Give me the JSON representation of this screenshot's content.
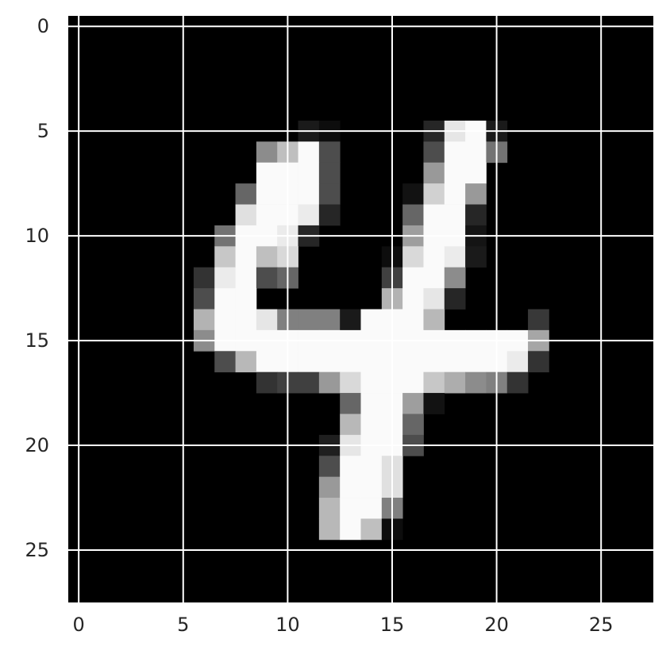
{
  "chart_data": {
    "type": "heatmap",
    "colormap": "gray",
    "value_range": [
      0,
      1
    ],
    "background_color": "#000000",
    "grid": true,
    "grid_color": "#ffffff",
    "x_ticks": [
      0,
      5,
      10,
      15,
      20,
      25
    ],
    "y_ticks": [
      0,
      5,
      10,
      15,
      20,
      25
    ],
    "x_tick_labels": [
      "0",
      "5",
      "10",
      "15",
      "20",
      "25"
    ],
    "y_tick_labels": [
      "0",
      "5",
      "10",
      "15",
      "20",
      "25"
    ],
    "xlim": [
      -0.5,
      27.5
    ],
    "ylim": [
      27.5,
      -0.5
    ],
    "pixels": [
      [
        5,
        11,
        0.1
      ],
      [
        5,
        12,
        0.05
      ],
      [
        5,
        17,
        0.15
      ],
      [
        5,
        18,
        0.9
      ],
      [
        5,
        19,
        0.98
      ],
      [
        5,
        20,
        0.1
      ],
      [
        6,
        9,
        0.55
      ],
      [
        6,
        10,
        0.75
      ],
      [
        6,
        11,
        0.98
      ],
      [
        6,
        12,
        0.3
      ],
      [
        6,
        17,
        0.3
      ],
      [
        6,
        18,
        0.98
      ],
      [
        6,
        19,
        0.98
      ],
      [
        6,
        20,
        0.45
      ],
      [
        7,
        9,
        0.98
      ],
      [
        7,
        10,
        0.98
      ],
      [
        7,
        11,
        0.98
      ],
      [
        7,
        12,
        0.3
      ],
      [
        7,
        17,
        0.6
      ],
      [
        7,
        18,
        0.98
      ],
      [
        7,
        19,
        0.98
      ],
      [
        8,
        8,
        0.4
      ],
      [
        8,
        9,
        0.98
      ],
      [
        8,
        10,
        0.98
      ],
      [
        8,
        11,
        0.98
      ],
      [
        8,
        12,
        0.3
      ],
      [
        8,
        16,
        0.07
      ],
      [
        8,
        17,
        0.82
      ],
      [
        8,
        18,
        0.98
      ],
      [
        8,
        19,
        0.6
      ],
      [
        9,
        8,
        0.88
      ],
      [
        9,
        9,
        0.98
      ],
      [
        9,
        10,
        0.98
      ],
      [
        9,
        11,
        0.92
      ],
      [
        9,
        12,
        0.15
      ],
      [
        9,
        16,
        0.4
      ],
      [
        9,
        17,
        0.98
      ],
      [
        9,
        18,
        0.98
      ],
      [
        9,
        19,
        0.15
      ],
      [
        10,
        7,
        0.45
      ],
      [
        10,
        8,
        0.98
      ],
      [
        10,
        9,
        0.98
      ],
      [
        10,
        10,
        0.92
      ],
      [
        10,
        11,
        0.15
      ],
      [
        10,
        16,
        0.62
      ],
      [
        10,
        17,
        0.98
      ],
      [
        10,
        18,
        0.98
      ],
      [
        10,
        19,
        0.08
      ],
      [
        11,
        7,
        0.78
      ],
      [
        11,
        8,
        0.98
      ],
      [
        11,
        9,
        0.75
      ],
      [
        11,
        10,
        0.85
      ],
      [
        11,
        15,
        0.05
      ],
      [
        11,
        16,
        0.85
      ],
      [
        11,
        17,
        0.98
      ],
      [
        11,
        18,
        0.92
      ],
      [
        11,
        19,
        0.1
      ],
      [
        12,
        6,
        0.2
      ],
      [
        12,
        7,
        0.92
      ],
      [
        12,
        8,
        0.98
      ],
      [
        12,
        9,
        0.3
      ],
      [
        12,
        10,
        0.4
      ],
      [
        12,
        15,
        0.25
      ],
      [
        12,
        16,
        0.98
      ],
      [
        12,
        17,
        0.98
      ],
      [
        12,
        18,
        0.55
      ],
      [
        13,
        6,
        0.3
      ],
      [
        13,
        7,
        0.98
      ],
      [
        13,
        8,
        0.98
      ],
      [
        13,
        15,
        0.7
      ],
      [
        13,
        16,
        0.98
      ],
      [
        13,
        17,
        0.9
      ],
      [
        13,
        18,
        0.15
      ],
      [
        14,
        6,
        0.7
      ],
      [
        14,
        7,
        0.98
      ],
      [
        14,
        8,
        0.98
      ],
      [
        14,
        9,
        0.9
      ],
      [
        14,
        10,
        0.5
      ],
      [
        14,
        11,
        0.5
      ],
      [
        14,
        12,
        0.5
      ],
      [
        14,
        13,
        0.1
      ],
      [
        14,
        14,
        0.98
      ],
      [
        14,
        15,
        0.98
      ],
      [
        14,
        16,
        0.98
      ],
      [
        14,
        17,
        0.72
      ],
      [
        14,
        22,
        0.22
      ],
      [
        15,
        6,
        0.55
      ],
      [
        15,
        7,
        0.98
      ],
      [
        15,
        8,
        0.98
      ],
      [
        15,
        9,
        0.98
      ],
      [
        15,
        10,
        0.98
      ],
      [
        15,
        11,
        0.98
      ],
      [
        15,
        12,
        0.98
      ],
      [
        15,
        13,
        0.98
      ],
      [
        15,
        14,
        0.98
      ],
      [
        15,
        15,
        0.98
      ],
      [
        15,
        16,
        0.98
      ],
      [
        15,
        17,
        0.98
      ],
      [
        15,
        18,
        0.98
      ],
      [
        15,
        19,
        0.98
      ],
      [
        15,
        20,
        0.98
      ],
      [
        15,
        21,
        0.98
      ],
      [
        15,
        22,
        0.65
      ],
      [
        16,
        7,
        0.3
      ],
      [
        16,
        8,
        0.72
      ],
      [
        16,
        9,
        0.98
      ],
      [
        16,
        10,
        0.98
      ],
      [
        16,
        11,
        0.98
      ],
      [
        16,
        12,
        0.98
      ],
      [
        16,
        13,
        0.98
      ],
      [
        16,
        14,
        0.98
      ],
      [
        16,
        15,
        0.98
      ],
      [
        16,
        16,
        0.98
      ],
      [
        16,
        17,
        0.98
      ],
      [
        16,
        18,
        0.98
      ],
      [
        16,
        19,
        0.98
      ],
      [
        16,
        20,
        0.98
      ],
      [
        16,
        21,
        0.92
      ],
      [
        16,
        22,
        0.2
      ],
      [
        17,
        9,
        0.2
      ],
      [
        17,
        10,
        0.25
      ],
      [
        17,
        11,
        0.25
      ],
      [
        17,
        12,
        0.6
      ],
      [
        17,
        13,
        0.85
      ],
      [
        17,
        14,
        0.98
      ],
      [
        17,
        15,
        0.98
      ],
      [
        17,
        16,
        0.98
      ],
      [
        17,
        17,
        0.78
      ],
      [
        17,
        18,
        0.68
      ],
      [
        17,
        19,
        0.55
      ],
      [
        17,
        20,
        0.5
      ],
      [
        17,
        21,
        0.2
      ],
      [
        18,
        13,
        0.4
      ],
      [
        18,
        14,
        0.98
      ],
      [
        18,
        15,
        0.98
      ],
      [
        18,
        16,
        0.62
      ],
      [
        18,
        17,
        0.07
      ],
      [
        19,
        13,
        0.72
      ],
      [
        19,
        14,
        0.98
      ],
      [
        19,
        15,
        0.98
      ],
      [
        19,
        16,
        0.4
      ],
      [
        20,
        12,
        0.12
      ],
      [
        20,
        13,
        0.9
      ],
      [
        20,
        14,
        0.98
      ],
      [
        20,
        15,
        0.98
      ],
      [
        20,
        16,
        0.3
      ],
      [
        21,
        12,
        0.3
      ],
      [
        21,
        13,
        0.98
      ],
      [
        21,
        14,
        0.98
      ],
      [
        21,
        15,
        0.88
      ],
      [
        22,
        12,
        0.6
      ],
      [
        22,
        13,
        0.98
      ],
      [
        22,
        14,
        0.98
      ],
      [
        22,
        15,
        0.88
      ],
      [
        23,
        12,
        0.72
      ],
      [
        23,
        13,
        0.98
      ],
      [
        23,
        14,
        0.98
      ],
      [
        23,
        15,
        0.5
      ],
      [
        24,
        12,
        0.72
      ],
      [
        24,
        13,
        0.98
      ],
      [
        24,
        14,
        0.75
      ],
      [
        24,
        15,
        0.05
      ]
    ]
  }
}
